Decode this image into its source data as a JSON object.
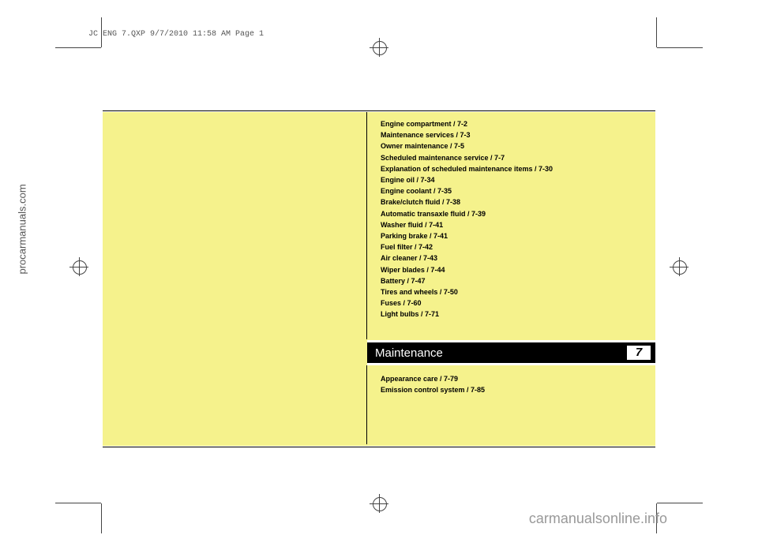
{
  "header": "JC ENG 7.QXP  9/7/2010  11:58 AM  Page 1",
  "sidebar": "procarmanuals.com",
  "watermark": "carmanualsonline.info",
  "chapter": {
    "title": "Maintenance",
    "number": "7"
  },
  "toc_top": [
    "Engine compartment / 7-2",
    "Maintenance services / 7-3",
    "Owner maintenance / 7-5",
    "Scheduled maintenance service / 7-7",
    "Explanation of scheduled maintenance items / 7-30",
    "Engine oil / 7-34",
    "Engine coolant / 7-35",
    "Brake/clutch fluid / 7-38",
    "Automatic transaxle fluid / 7-39",
    "Washer fluid / 7-41",
    "Parking brake / 7-41",
    "Fuel filter / 7-42",
    "Air cleaner / 7-43",
    "Wiper blades / 7-44",
    "Battery / 7-47",
    "Tires and wheels / 7-50",
    "Fuses / 7-60",
    "Light bulbs / 7-71"
  ],
  "toc_bottom": [
    "Appearance care / 7-79",
    "Emission control system / 7-85"
  ],
  "colors": {
    "yellow_bg": "#f5f28c",
    "black": "#000000",
    "white": "#ffffff",
    "gray_text": "#555555",
    "watermark_gray": "#999999"
  }
}
